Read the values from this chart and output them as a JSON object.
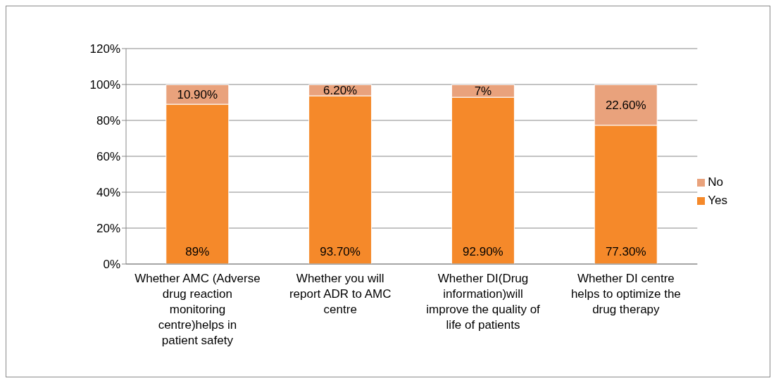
{
  "chart_data": {
    "type": "bar",
    "stacked": true,
    "categories": [
      "Whether AMC (Adverse drug reaction monitoring centre)helps in patient safety",
      "Whether you will report ADR to AMC centre",
      "Whether DI(Drug information)will improve the quality of life of patients",
      "Whether DI centre helps to optimize the drug therapy"
    ],
    "series": [
      {
        "name": "Yes",
        "color": "#f5892a",
        "values": [
          89,
          93.7,
          92.9,
          77.3
        ],
        "value_labels": [
          "89%",
          "93.70%",
          "92.90%",
          "77.30%"
        ]
      },
      {
        "name": "No",
        "color": "#e9a27c",
        "values": [
          10.9,
          6.2,
          7,
          22.6
        ],
        "value_labels": [
          "10.90%",
          "6.20%",
          "7%",
          "22.60%"
        ]
      }
    ],
    "ylim": [
      0,
      120
    ],
    "yticks": [
      {
        "value": 0,
        "label": "0%"
      },
      {
        "value": 20,
        "label": "20%"
      },
      {
        "value": 40,
        "label": "40%"
      },
      {
        "value": 60,
        "label": "60%"
      },
      {
        "value": 80,
        "label": "80%"
      },
      {
        "value": 100,
        "label": "100%"
      },
      {
        "value": 120,
        "label": "120%"
      }
    ],
    "grid": "y",
    "legend": "right"
  }
}
